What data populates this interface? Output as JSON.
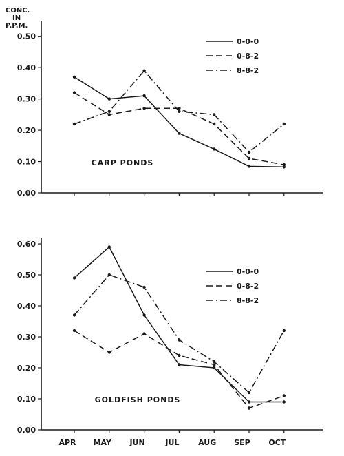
{
  "chart_data": [
    {
      "type": "line",
      "annotation": "CARP PONDS",
      "ylabel_lines": [
        "CONC.",
        "IN",
        "P.P.M."
      ],
      "categories": [
        "APR",
        "MAY",
        "JUN",
        "JUL",
        "AUG",
        "SEP",
        "OCT"
      ],
      "ylim": [
        0,
        0.55
      ],
      "yticks": [
        "0.00",
        "0.10",
        "0.20",
        "0.30",
        "0.40",
        "0.50"
      ],
      "legend_position": "top-right",
      "series": [
        {
          "name": "0-0-0",
          "style": "solid",
          "x": [
            "APR",
            "MAY",
            "JUN",
            "JUL",
            "AUG",
            "SEP",
            "OCT"
          ],
          "values": [
            0.37,
            0.3,
            0.31,
            0.19,
            0.14,
            0.085,
            0.083
          ]
        },
        {
          "name": "0-8-2",
          "style": "dashed",
          "x": [
            "APR",
            "MAY",
            "JUN",
            "JUL",
            "AUG",
            "SEP",
            "OCT"
          ],
          "values": [
            0.32,
            0.25,
            0.27,
            0.27,
            0.22,
            0.11,
            0.09
          ]
        },
        {
          "name": "8-8-2",
          "style": "dashdot",
          "x": [
            "APR",
            "MAY",
            "JUN",
            "JUL",
            "AUG",
            "SEP",
            "OCT"
          ],
          "values": [
            0.22,
            0.26,
            0.39,
            0.26,
            0.25,
            0.13,
            0.22
          ]
        }
      ]
    },
    {
      "type": "line",
      "annotation": "GOLDFISH PONDS",
      "categories": [
        "APR",
        "MAY",
        "JUN",
        "JUL",
        "AUG",
        "SEP",
        "OCT"
      ],
      "ylim": [
        0,
        0.62
      ],
      "yticks": [
        "0.00",
        "0.10",
        "0.20",
        "0.30",
        "0.40",
        "0.50",
        "0.60"
      ],
      "legend_position": "top-right",
      "series": [
        {
          "name": "0-0-0",
          "style": "solid",
          "x": [
            "APR",
            "MAY",
            "JUN",
            "JUL",
            "AUG",
            "SEP",
            "OCT"
          ],
          "values": [
            0.49,
            0.59,
            0.37,
            0.21,
            0.2,
            0.09,
            0.09
          ]
        },
        {
          "name": "0-8-2",
          "style": "dashed",
          "x": [
            "APR",
            "MAY",
            "JUN",
            "JUL",
            "AUG",
            "SEP",
            "OCT"
          ],
          "values": [
            0.32,
            0.25,
            0.31,
            0.24,
            0.21,
            0.07,
            0.11
          ]
        },
        {
          "name": "8-8-2",
          "style": "dashdot",
          "x": [
            "APR",
            "MAY",
            "JUN",
            "JUL",
            "AUG",
            "SEP",
            "OCT"
          ],
          "values": [
            0.37,
            0.5,
            0.46,
            0.29,
            0.22,
            0.12,
            0.32
          ]
        }
      ]
    }
  ]
}
